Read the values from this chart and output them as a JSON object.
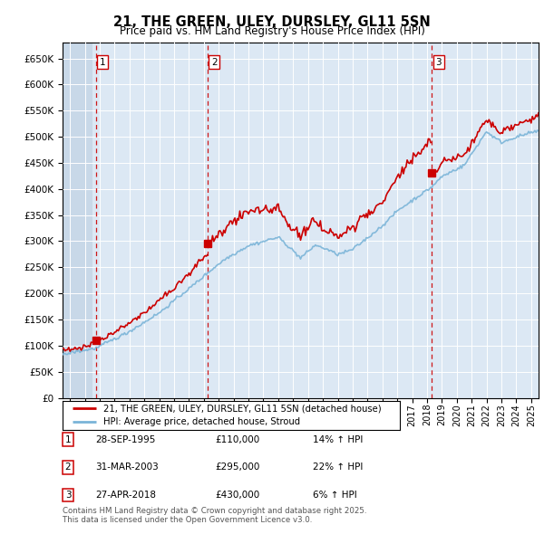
{
  "title": "21, THE GREEN, ULEY, DURSLEY, GL11 5SN",
  "subtitle": "Price paid vs. HM Land Registry's House Price Index (HPI)",
  "legend_line1": "21, THE GREEN, ULEY, DURSLEY, GL11 5SN (detached house)",
  "legend_line2": "HPI: Average price, detached house, Stroud",
  "transactions": [
    {
      "num": 1,
      "date_str": "28-SEP-1995",
      "year": 1995.75,
      "price": 110000,
      "label": "14% ↑ HPI"
    },
    {
      "num": 2,
      "date_str": "31-MAR-2003",
      "year": 2003.25,
      "price": 295000,
      "label": "22% ↑ HPI"
    },
    {
      "num": 3,
      "date_str": "27-APR-2018",
      "year": 2018.33,
      "price": 430000,
      "label": "6% ↑ HPI"
    }
  ],
  "hpi_color": "#7ab4d8",
  "price_color": "#cc0000",
  "dashed_color": "#cc0000",
  "bg_light": "#dce8f4",
  "bg_hatch": "#c8d8e8",
  "ylim": [
    0,
    680000
  ],
  "yticks": [
    0,
    50000,
    100000,
    150000,
    200000,
    250000,
    300000,
    350000,
    400000,
    450000,
    500000,
    550000,
    600000,
    650000
  ],
  "xmin": 1993.5,
  "xmax": 2025.5
}
